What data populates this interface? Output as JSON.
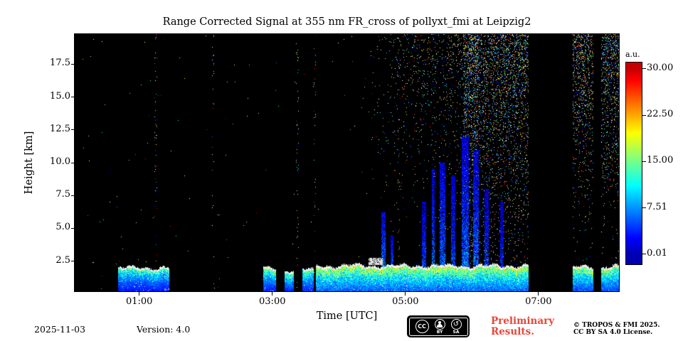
{
  "footer": {
    "date": "2025-11-03",
    "version": "Version: 4.0",
    "preliminary": {
      "line1": "Preliminary",
      "line2": "Results.",
      "color": "#e8463a"
    },
    "copyright": {
      "line1": "© TROPOS & FMI 2025.",
      "line2": "CC BY SA 4.0 License."
    },
    "license_badge": {
      "cc": "CC",
      "by": "BY",
      "sa": "SA",
      "sa_icon": "↺"
    }
  },
  "chart_data": {
    "type": "heatmap",
    "title": "Range Corrected Signal at 355 nm FR_cross of pollyxt_fmi at Leipzig2",
    "xlabel": "Time [UTC]",
    "ylabel": "Height [km]",
    "x_unit": "hours UTC",
    "x_range": [
      0.03,
      8.21
    ],
    "y_range_km": [
      0.2,
      19.8
    ],
    "x_ticks": [
      {
        "value": 1,
        "label": "01:00"
      },
      {
        "value": 3,
        "label": "03:00"
      },
      {
        "value": 5,
        "label": "05:00"
      },
      {
        "value": 7,
        "label": "07:00"
      }
    ],
    "y_ticks": [
      {
        "value": 2.5,
        "label": "2.5"
      },
      {
        "value": 5.0,
        "label": "5.0"
      },
      {
        "value": 7.5,
        "label": "7.5"
      },
      {
        "value": 10.0,
        "label": "10.0"
      },
      {
        "value": 12.5,
        "label": "12.5"
      },
      {
        "value": 15.0,
        "label": "15.0"
      },
      {
        "value": 17.5,
        "label": "17.5"
      }
    ],
    "colorbar": {
      "label": "a.u.",
      "colormap": "jet",
      "vmin": 0.01,
      "vmax": 30.0,
      "bar_scale_range": [
        -1.6,
        31.0
      ],
      "ticks": [
        {
          "value": 30.0,
          "label": "30.00"
        },
        {
          "value": 22.5,
          "label": "22.50"
        },
        {
          "value": 15.0,
          "label": "15.00"
        },
        {
          "value": 7.51,
          "label": "7.51"
        },
        {
          "value": 0.01,
          "label": "0.01"
        }
      ]
    },
    "background_color": "#000000",
    "features": {
      "description": "Black background = signal below color floor. Near-surface aerosol layer up to ~2 km with white-capped top; daytime background speckle noise increasing after ~04:20 UTC, densest 06:00-06:50 and after 07:30; blue vertical streaks above the layer 04:40-06:30; full-column data gaps ~06:50-07:30 and ~07:50.",
      "aerosol_layers": [
        {
          "t0": 0.68,
          "t1": 1.45,
          "top_km": 2.0,
          "amp": 14,
          "k": 1.8
        },
        {
          "t0": 2.86,
          "t1": 3.06,
          "top_km": 1.95,
          "amp": 15,
          "k": 1.7
        },
        {
          "t0": 3.18,
          "t1": 3.32,
          "top_km": 1.8,
          "amp": 15,
          "k": 1.7
        },
        {
          "t0": 3.45,
          "t1": 3.62,
          "top_km": 1.85,
          "amp": 15,
          "k": 1.7
        },
        {
          "t0": 3.66,
          "t1": 6.85,
          "top_km": 2.15,
          "amp": 17,
          "k": 1.3
        },
        {
          "t0": 7.52,
          "t1": 7.82,
          "top_km": 2.05,
          "amp": 16,
          "k": 1.4
        },
        {
          "t0": 7.94,
          "t1": 8.21,
          "top_km": 2.1,
          "amp": 16,
          "k": 1.4
        }
      ],
      "data_gaps": [
        [
          6.85,
          7.52
        ],
        [
          7.82,
          7.94
        ]
      ],
      "cloud_patches": [
        {
          "t0": 4.45,
          "t1": 4.66,
          "h0": 2.2,
          "h1": 2.75
        }
      ],
      "noise_streaks": [
        {
          "t": 4.67,
          "w": 0.07,
          "top_km": 6.2,
          "s": 7
        },
        {
          "t": 4.8,
          "w": 0.04,
          "top_km": 4.5,
          "s": 5
        },
        {
          "t": 5.28,
          "w": 0.06,
          "top_km": 7.0,
          "s": 5
        },
        {
          "t": 5.42,
          "w": 0.05,
          "top_km": 9.5,
          "s": 6
        },
        {
          "t": 5.56,
          "w": 0.09,
          "top_km": 10.0,
          "s": 6
        },
        {
          "t": 5.72,
          "w": 0.06,
          "top_km": 9.0,
          "s": 5
        },
        {
          "t": 5.9,
          "w": 0.1,
          "top_km": 12.0,
          "s": 6
        },
        {
          "t": 6.06,
          "w": 0.08,
          "top_km": 11.0,
          "s": 6
        },
        {
          "t": 6.22,
          "w": 0.06,
          "top_km": 8.0,
          "s": 5
        },
        {
          "t": 6.45,
          "w": 0.05,
          "top_km": 7.0,
          "s": 4
        }
      ],
      "noise": {
        "base_density": 0.0007,
        "daylight": {
          "start_hour": 4.3,
          "max_density_top": 0.26
        },
        "dense_columns": [
          {
            "t": 5.98,
            "w": 0.22,
            "density": 0.2
          },
          {
            "t": 6.45,
            "w": 0.8,
            "density": 0.07
          }
        ],
        "sparse_columns": [
          1.25,
          2.11,
          3.38,
          3.64,
          4.9
        ]
      }
    }
  }
}
